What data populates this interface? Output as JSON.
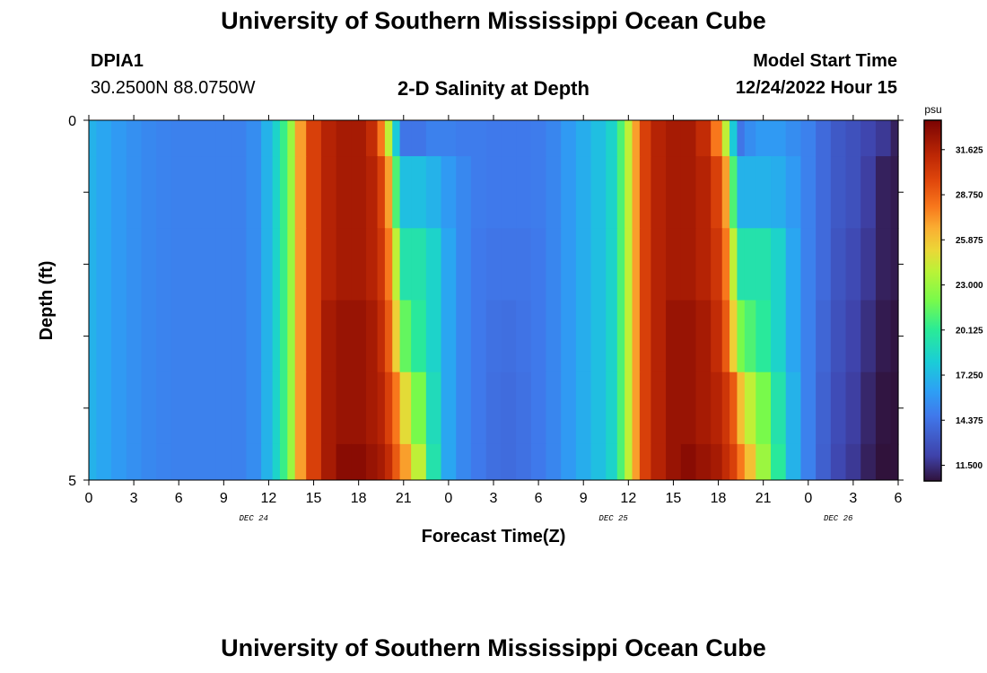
{
  "header": {
    "title": "University of Southern Mississippi Ocean Cube",
    "station_id": "DPIA1",
    "coords": "30.2500N  88.0750W",
    "plot_title": "2-D Salinity at Depth",
    "start_label": "Model Start Time",
    "start_value": "12/24/2022 Hour 15"
  },
  "footer": {
    "title": "University of Southern Mississippi Ocean Cube"
  },
  "chart_data": {
    "type": "heatmap",
    "title": "2-D Salinity at Depth",
    "xlabel": "Forecast Time(Z)",
    "ylabel": "Depth (ft)",
    "x_tick_labels": [
      "0",
      "3",
      "6",
      "9",
      "12",
      "15",
      "18",
      "21",
      "0",
      "3",
      "6",
      "9",
      "12",
      "15",
      "18",
      "21",
      "0",
      "3",
      "6"
    ],
    "date_labels": [
      {
        "text": "DEC 24",
        "x_hours": 11
      },
      {
        "text": "DEC 25",
        "x_hours": 35
      },
      {
        "text": "DEC 26",
        "x_hours": 50
      }
    ],
    "x_range_hours": [
      0,
      54
    ],
    "y_tick_labels": [
      "0",
      "5"
    ],
    "ylim": [
      0,
      5
    ],
    "colorbar": {
      "unit": "psu",
      "range": [
        10.5,
        33.5
      ],
      "tick_labels": [
        "31.625",
        "28.750",
        "25.875",
        "23.000",
        "20.125",
        "17.250",
        "14.375",
        "11.500"
      ],
      "tick_values": [
        31.625,
        28.75,
        25.875,
        23.0,
        20.125,
        17.25,
        14.375,
        11.5
      ]
    },
    "depth_levels": [
      "0-0.5",
      "0.5-1.5",
      "1.5-2.5",
      "2.5-3.5",
      "3.5-4.5",
      "4.5-5"
    ],
    "time_nodes_hours": [
      0,
      1,
      2,
      3,
      4,
      5,
      6,
      7,
      8,
      9,
      10,
      11,
      12,
      12.5,
      13,
      13.5,
      14,
      15,
      16,
      17,
      18,
      19,
      19.5,
      20,
      20.5,
      21,
      22,
      23,
      24,
      25,
      26,
      27,
      28,
      29,
      30,
      31,
      32,
      33,
      34,
      35,
      35.5,
      36,
      36.5,
      37,
      38,
      39,
      40,
      41,
      42,
      42.5,
      43,
      43.5,
      44,
      45,
      46,
      47,
      48,
      49,
      50,
      51,
      52,
      53,
      54
    ],
    "salinity": [
      [
        17,
        16.5,
        16,
        15.6,
        15.3,
        15.1,
        15,
        15,
        15,
        15,
        15,
        15.5,
        17,
        18.5,
        20.5,
        23,
        27,
        30,
        31.5,
        32,
        32,
        31,
        28,
        24,
        18,
        14.5,
        14.5,
        15,
        15,
        14.8,
        14.8,
        14.7,
        14.7,
        14.7,
        14.8,
        15.2,
        16,
        16.8,
        17.5,
        18.5,
        21,
        24,
        27,
        30,
        31.5,
        32,
        32,
        31,
        28,
        24,
        18,
        14.5,
        15.5,
        16,
        16,
        15.5,
        15,
        14,
        13.2,
        12.8,
        12.3,
        11.8,
        11
      ],
      [
        17,
        16.5,
        16,
        15.6,
        15.3,
        15.1,
        15,
        15,
        15,
        15,
        15,
        15.5,
        17,
        18.5,
        20.5,
        23,
        27,
        30,
        31.5,
        32,
        32,
        31.5,
        30,
        27,
        21,
        17.5,
        17.5,
        17,
        16,
        15.3,
        14.8,
        14.7,
        14.7,
        14.7,
        14.8,
        15.2,
        16,
        16.8,
        17.5,
        18.5,
        21,
        24,
        27,
        30,
        31.5,
        32,
        32,
        31.5,
        30,
        27,
        21,
        17,
        17,
        17,
        16.8,
        16,
        15,
        14,
        13.2,
        12.8,
        12,
        11,
        10.8
      ],
      [
        17,
        16.5,
        16,
        15.6,
        15.3,
        15.1,
        15,
        15,
        15,
        15,
        15,
        15.5,
        17,
        18.5,
        20.5,
        23,
        27,
        30,
        31.5,
        32,
        32,
        31.5,
        30.5,
        28,
        24,
        19.5,
        19.5,
        18.5,
        16.5,
        15.3,
        14.7,
        14.5,
        14.5,
        14.5,
        14.7,
        15.2,
        16,
        16.8,
        17.5,
        18.5,
        21,
        24,
        27,
        30,
        31.5,
        32,
        32,
        31.5,
        30.5,
        28,
        24,
        19.5,
        19.5,
        19.5,
        18.5,
        16.5,
        15,
        14,
        13,
        12.5,
        11.8,
        11,
        10.8
      ],
      [
        17,
        16.5,
        16,
        15.6,
        15.3,
        15.1,
        15,
        15,
        15,
        15,
        15,
        15.5,
        17,
        18.5,
        20.5,
        23,
        27,
        30,
        32,
        32.5,
        32.5,
        32,
        31,
        29,
        25.5,
        21.5,
        20,
        18.5,
        16.5,
        15.3,
        14.7,
        14.3,
        14.2,
        14.4,
        14.7,
        15.2,
        16,
        16.8,
        17.5,
        18.5,
        21,
        24,
        27,
        30,
        31.5,
        32.5,
        32.5,
        32,
        31,
        29,
        25.5,
        22,
        21,
        20,
        18.5,
        16.5,
        15,
        13.8,
        12.8,
        12.2,
        11.5,
        10.8,
        10.6
      ],
      [
        17,
        16.5,
        16,
        15.6,
        15.3,
        15.1,
        15,
        15,
        15,
        15,
        15,
        15.5,
        17,
        18.5,
        20.5,
        23,
        27,
        30,
        32,
        32.5,
        32.5,
        32,
        31.5,
        30,
        28,
        25,
        22,
        19,
        16.5,
        15.3,
        14.7,
        14.2,
        14.1,
        14.3,
        14.7,
        15.2,
        16,
        16.8,
        17.5,
        18.5,
        21,
        24,
        27,
        30,
        31.5,
        32.5,
        32.5,
        32,
        31.5,
        30.5,
        29,
        26,
        24,
        22,
        19.5,
        17,
        15,
        13.6,
        12.6,
        12,
        11.2,
        10.6,
        10.5
      ],
      [
        17,
        16.5,
        16,
        15.6,
        15.3,
        15.1,
        15,
        15,
        15,
        15,
        15,
        15.5,
        17,
        18.5,
        20.5,
        23,
        27,
        30,
        32,
        33,
        33,
        32.5,
        32,
        31,
        29,
        27,
        24,
        19.5,
        16.5,
        15.3,
        14.7,
        14.2,
        14.1,
        14.3,
        14.7,
        15.2,
        16,
        16.8,
        17.5,
        18.5,
        21,
        24,
        27,
        30,
        31.5,
        32.5,
        33,
        32.5,
        32,
        31,
        30,
        28,
        26,
        23,
        20,
        17,
        15,
        13.5,
        12.4,
        11.8,
        11,
        10.5,
        10.4
      ]
    ]
  }
}
